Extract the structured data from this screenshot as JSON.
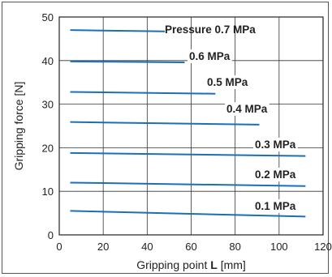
{
  "chart_data": {
    "type": "line",
    "xlabel": "Gripping point",
    "xlabel_bold": "L",
    "xlabel_unit": "[mm]",
    "ylabel": "Gripping force [N]",
    "xlim": [
      0,
      120
    ],
    "ylim": [
      0,
      50
    ],
    "x_ticks": [
      0,
      20,
      40,
      60,
      80,
      100,
      120
    ],
    "y_ticks": [
      0,
      10,
      20,
      30,
      40,
      50
    ],
    "grid": true,
    "line_color": "#1a6fb5",
    "series": [
      {
        "name": "Pressure 0.7 MPa",
        "x": [
          5,
          48
        ],
        "y": [
          47.0,
          46.7
        ]
      },
      {
        "name": "0.6 MPa",
        "x": [
          5,
          57
        ],
        "y": [
          39.8,
          39.6
        ]
      },
      {
        "name": "0.5 MPa",
        "x": [
          5,
          71
        ],
        "y": [
          32.8,
          32.4
        ]
      },
      {
        "name": "0.4 MPa",
        "x": [
          5,
          91
        ],
        "y": [
          25.9,
          25.3
        ]
      },
      {
        "name": "0.3 MPa",
        "x": [
          5,
          112
        ],
        "y": [
          18.8,
          18.1
        ]
      },
      {
        "name": "0.2 MPa",
        "x": [
          5,
          112
        ],
        "y": [
          12.0,
          11.2
        ]
      },
      {
        "name": "0.1 MPa",
        "x": [
          5,
          112
        ],
        "y": [
          5.5,
          4.2
        ]
      }
    ]
  }
}
